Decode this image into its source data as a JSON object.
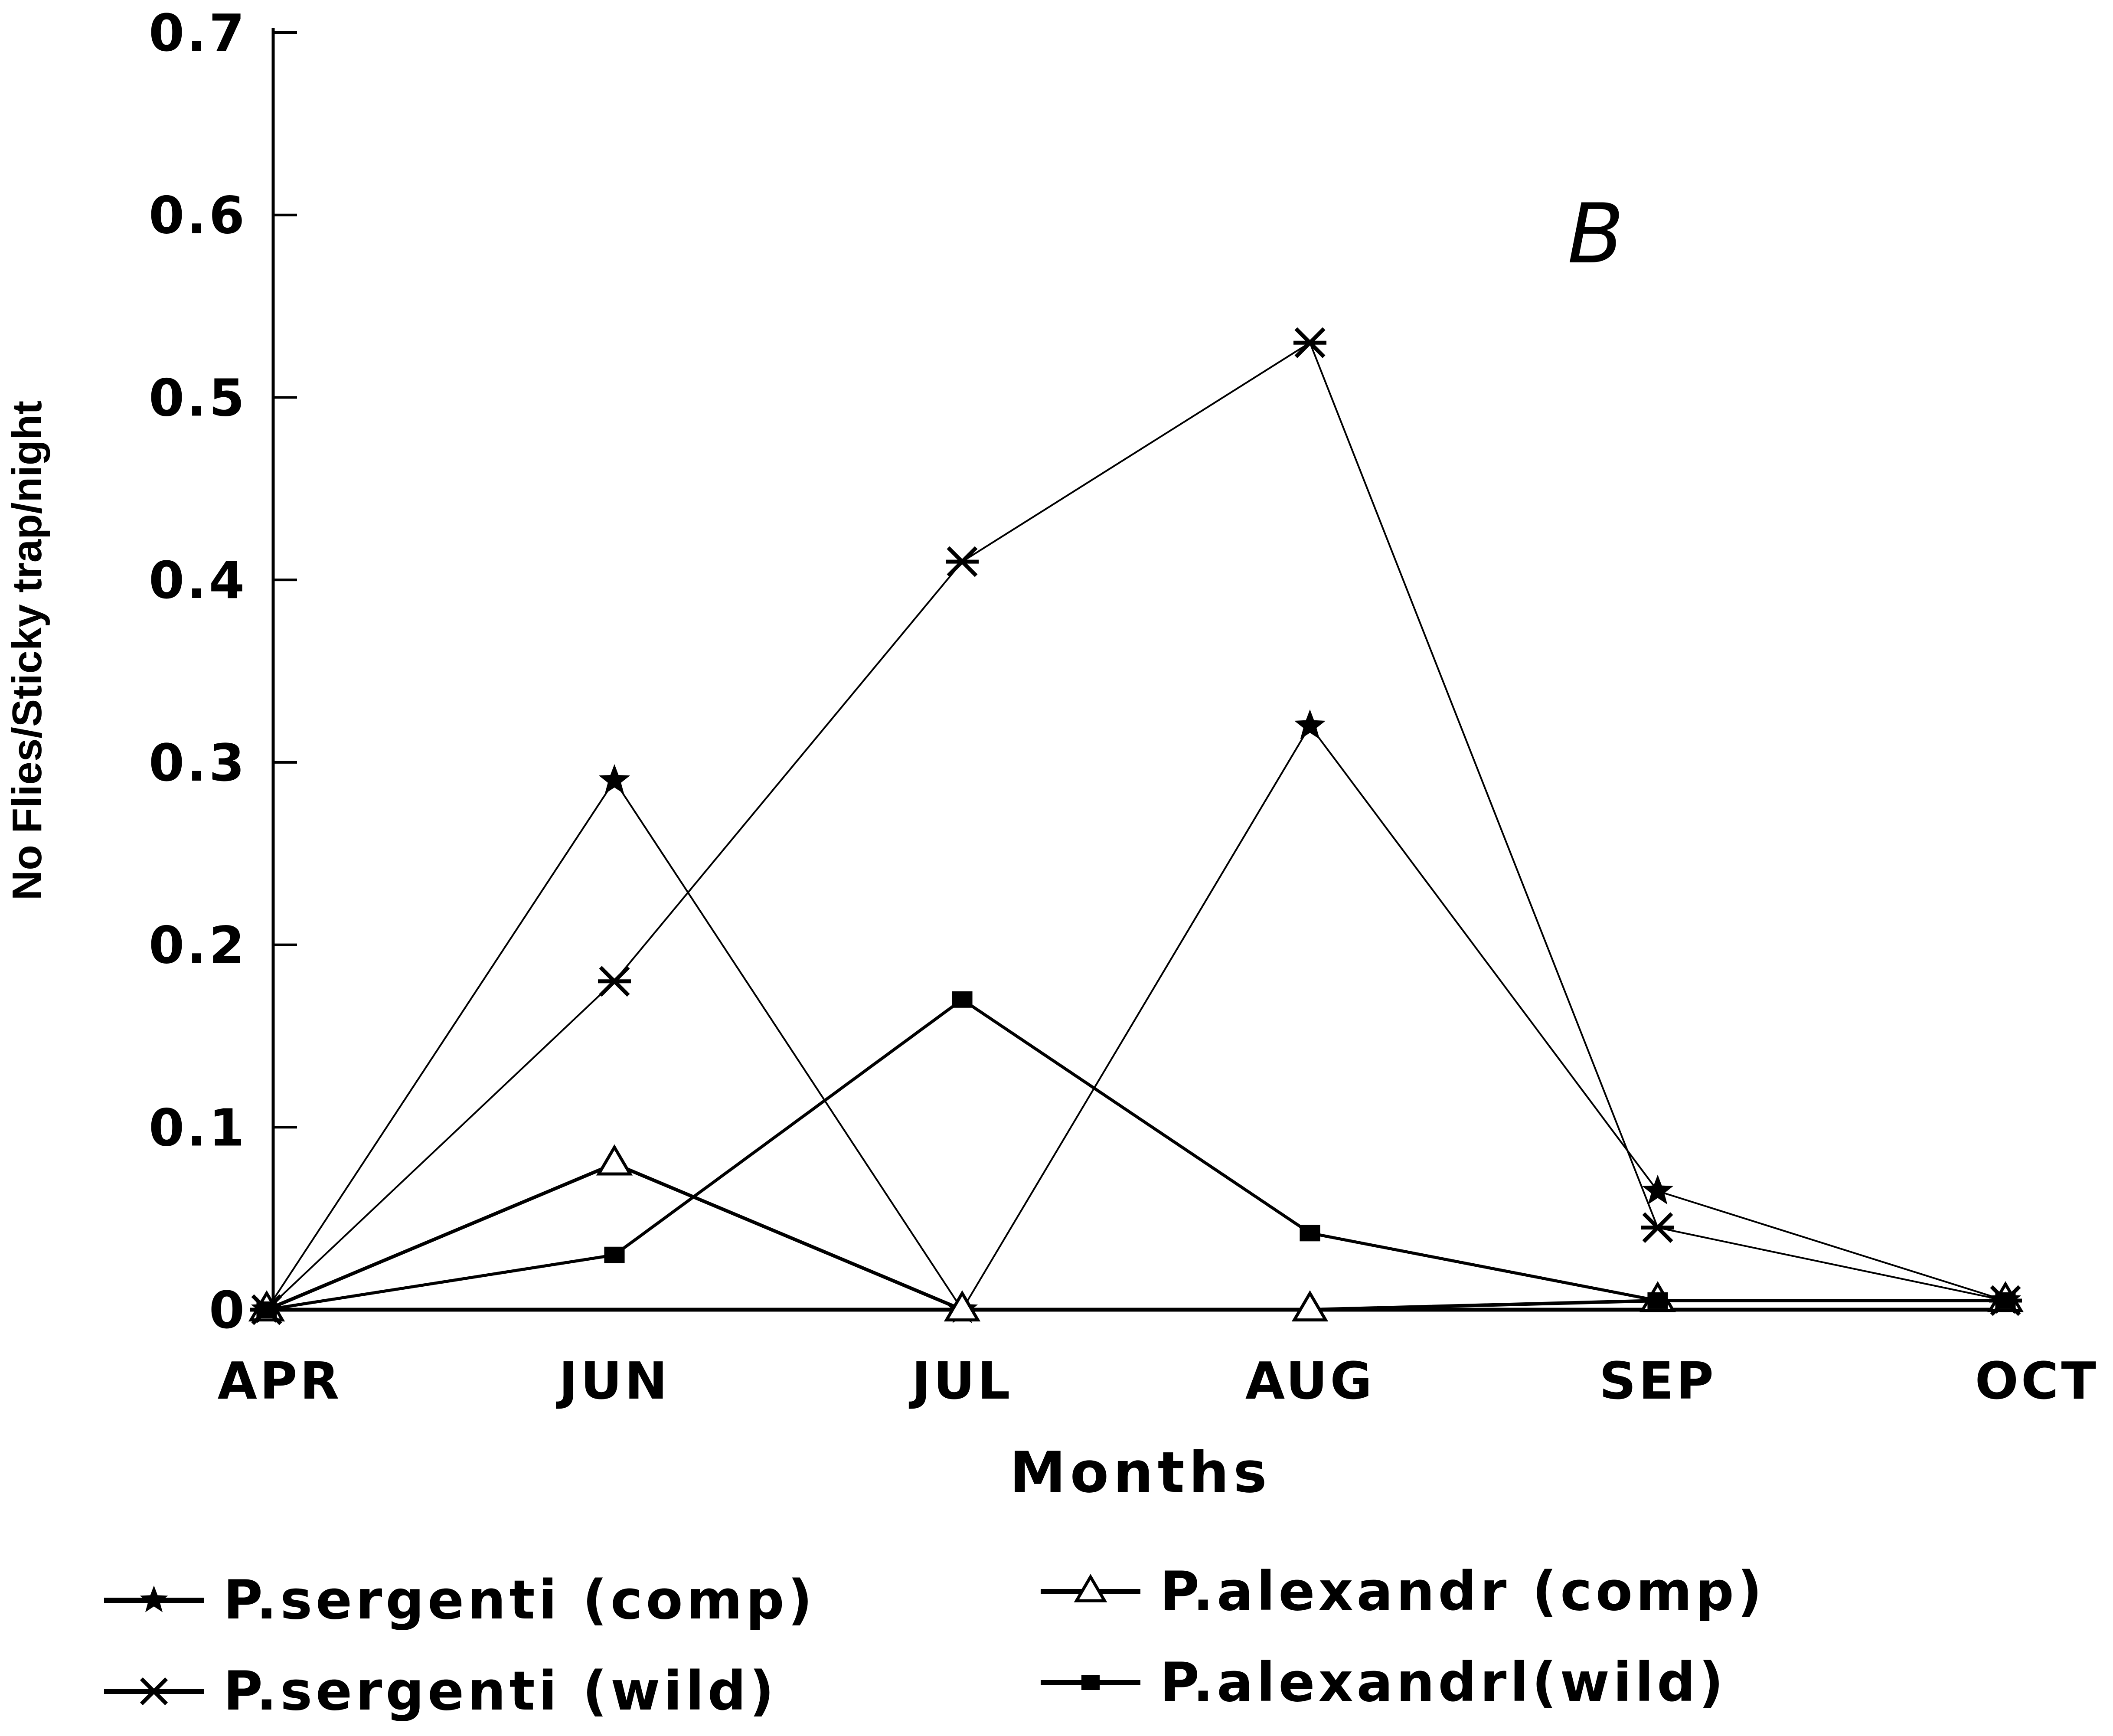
{
  "chart_data": {
    "type": "line",
    "panel_label": "B",
    "xlabel": "Months",
    "ylabel": "No Flies/Sticky trap/night",
    "categories": [
      "APR",
      "JUN",
      "JUL",
      "AUG",
      "SEP",
      "OCT"
    ],
    "y_ticks": [
      0,
      0.1,
      0.2,
      0.3,
      0.4,
      0.5,
      0.6,
      0.7
    ],
    "y_tick_labels": [
      "0",
      "0.1",
      "0.2",
      "0.3",
      "0.4",
      "0.5",
      "0.6",
      "0.7"
    ],
    "ylim": [
      0,
      0.7
    ],
    "grid": false,
    "legend_position": "bottom",
    "series": [
      {
        "name": "P.sergenti (comp)",
        "marker": "star",
        "values": [
          0,
          0.29,
          0.0,
          0.32,
          0.065,
          0.005
        ]
      },
      {
        "name": "P.alexandr (comp)",
        "marker": "open-triangle",
        "values": [
          0,
          0.08,
          0.0,
          0.0,
          0.005,
          0.005
        ]
      },
      {
        "name": "P.sergenti (wild)",
        "marker": "asterisk",
        "values": [
          0,
          0.18,
          0.41,
          0.53,
          0.045,
          0.005
        ]
      },
      {
        "name": "P.alexandrl(wild)",
        "marker": "filled-square",
        "values": [
          0,
          0.03,
          0.17,
          0.042,
          0.005,
          0.005
        ]
      }
    ]
  }
}
